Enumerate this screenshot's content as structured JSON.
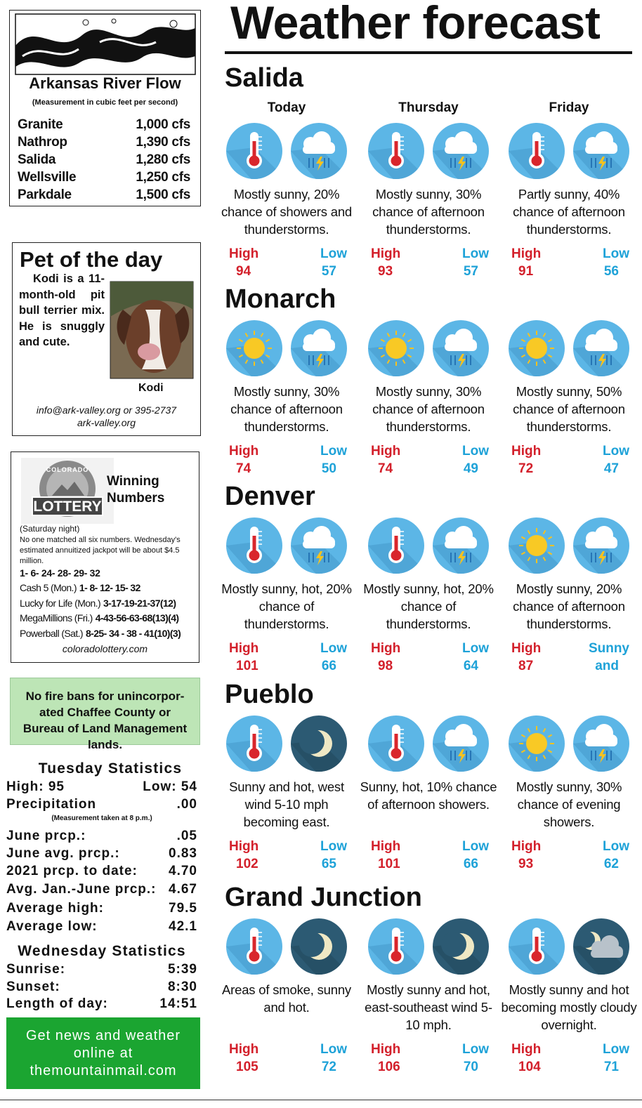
{
  "river_flow": {
    "title": "Arkansas River Flow",
    "subtitle": "(Measurement in cubic feet per second)",
    "rows": [
      [
        "Granite",
        "1,000 cfs"
      ],
      [
        "Nathrop",
        "1,390 cfs"
      ],
      [
        "Salida",
        "1,280 cfs"
      ],
      [
        "Wellsville",
        "1,250 cfs"
      ],
      [
        "Parkdale",
        "1,500 cfs"
      ]
    ]
  },
  "pet": {
    "title": "Pet of the day",
    "text": "Kodi is a 11-month-old pit bull terri­er mix. He is snuggly and cute.",
    "name": "Kodi",
    "contact": "info@ark-valley.org or 395-2737",
    "website": "ark-valley.org"
  },
  "lottery": {
    "logo_top": "COLORADO",
    "logo": "LOTTERY",
    "title": "Winning Numbers",
    "note": "(Saturday night)",
    "text": "No one matched all six numbers. Wednesday's estimated annuitized jackpot will be about $4.5 million.",
    "numbers": "1- 6- 24- 28- 29- 32",
    "rows": [
      [
        "Cash 5 (Mon.)",
        "1- 8- 12- 15- 32"
      ],
      [
        "Lucky for Life (Mon.)",
        "3-17-19-21-37(12)"
      ],
      [
        "MegaMillions (Fri.)",
        "4-43-56-63-68(13)(4)"
      ],
      [
        "Powerball (Sat.)",
        "8-25- 34 - 38 - 41(10)(3)"
      ]
    ],
    "website": "coloradolottery.com"
  },
  "fire_ban": "No fire bans for unincorpor­ated Chaffee County or Bureau of Land Management lands.",
  "tuesday": {
    "title": "Tuesday Statistics",
    "rows": [
      [
        "High: 95",
        "Low: 54"
      ],
      [
        "Precipitation",
        ".00"
      ],
      [
        "June prcp.:",
        ".05"
      ],
      [
        "June avg. prcp.:",
        "0.83"
      ],
      [
        "2021 prcp. to date:",
        "4.70"
      ],
      [
        "Avg. Jan.-June prcp.:",
        "4.67"
      ],
      [
        "Average high:",
        "79.5"
      ],
      [
        "Average low:",
        "42.1"
      ]
    ],
    "note": "(Measurement taken at 8 p.m.)"
  },
  "wednesday": {
    "title": "Wednesday Statistics",
    "rows": [
      [
        "Sunrise:",
        "5:39"
      ],
      [
        "Sunset:",
        "8:30"
      ],
      [
        "Length of day:",
        "14:51"
      ]
    ]
  },
  "promo": "Get news and weather online at themountainmail.com",
  "weather": {
    "title": "Weather forecast",
    "days": [
      "Today",
      "Thursday",
      "Friday"
    ],
    "high_label": "High",
    "low_label": "Low",
    "cities": [
      {
        "name": "Salida",
        "forecasts": [
          {
            "icons": [
              "thermometer",
              "storm"
            ],
            "text": "Mostly sunny, 20% chance of showers and thunderstorms.",
            "high": 94,
            "low": 57
          },
          {
            "icons": [
              "thermometer",
              "storm"
            ],
            "text": "Mostly sunny, 30% chance of afternoon thunderstorms.",
            "high": 93,
            "low": 57
          },
          {
            "icons": [
              "thermometer",
              "storm"
            ],
            "text": "Partly sunny, 40% chance of afternoon thunderstorms.",
            "high": 91,
            "low": 56
          }
        ]
      },
      {
        "name": "Monarch",
        "forecasts": [
          {
            "icons": [
              "sun",
              "storm"
            ],
            "text": "Mostly sunny, 30% chance of afternoon thunderstorms.",
            "high": 74,
            "low": 50
          },
          {
            "icons": [
              "sun",
              "storm"
            ],
            "text": "Mostly sunny, 30% chance of afternoon thunderstorms.",
            "high": 74,
            "low": 49
          },
          {
            "icons": [
              "sun",
              "storm"
            ],
            "text": "Mostly sunny, 50% chance of afternoon thunderstorms.",
            "high": 72,
            "low": 47
          }
        ]
      },
      {
        "name": "Denver",
        "forecasts": [
          {
            "icons": [
              "thermometer",
              "storm"
            ],
            "text": "Mostly sunny, hot, 20% chance of thunderstorms.",
            "high": 101,
            "low": 66
          },
          {
            "icons": [
              "thermometer",
              "storm"
            ],
            "text": "Mostly sunny, hot, 20% chance of thunderstorms.",
            "high": 98,
            "low": 64
          },
          {
            "icons": [
              "sun",
              "storm"
            ],
            "text": "Mostly sunny, 20% chance of afternoon thunderstorms.",
            "high": 87,
            "low_label": "Sunny",
            "low": "and"
          }
        ]
      },
      {
        "name": "Pueblo",
        "forecasts": [
          {
            "icons": [
              "thermometer",
              "moon"
            ],
            "text": "Sunny and hot, west wind 5-10 mph becoming east.",
            "high": 102,
            "low": 65
          },
          {
            "icons": [
              "thermometer",
              "storm"
            ],
            "text": "Sunny, hot, 10% chance of afternoon showers.",
            "high": 101,
            "low": 66
          },
          {
            "icons": [
              "sun",
              "storm"
            ],
            "text": "Mostly sunny, 30% chance of evening showers.",
            "high": 93,
            "low": 62
          }
        ]
      },
      {
        "name": "Grand Junction",
        "forecasts": [
          {
            "icons": [
              "thermometer",
              "moon"
            ],
            "text": "Areas of smoke, sunny and hot.",
            "high": 105,
            "low": 72
          },
          {
            "icons": [
              "thermometer",
              "moon"
            ],
            "text": "Mostly sunny and hot, east-southeast wind 5-10 mph.",
            "high": 106,
            "low": 70
          },
          {
            "icons": [
              "thermometer",
              "cloudy-night"
            ],
            "text": "Mostly sunny and hot becoming mostly cloudy overnight.",
            "high": 104,
            "low": 71
          }
        ]
      }
    ]
  }
}
